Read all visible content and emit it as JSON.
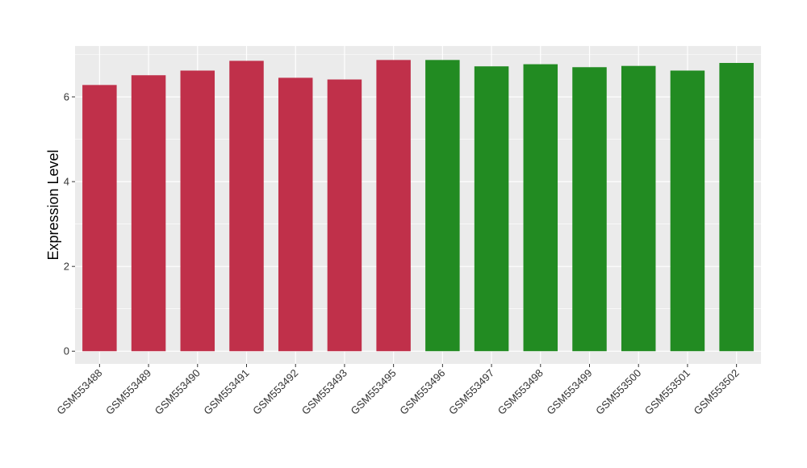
{
  "chart_data": {
    "type": "bar",
    "title": "",
    "xlabel": "",
    "ylabel": "Expression Level",
    "ylim": [
      -0.3,
      7.2
    ],
    "yticks": [
      0,
      2,
      4,
      6
    ],
    "grid": true,
    "legend": "none",
    "panel_color": "#EBEBEB",
    "categories": [
      "GSM553488",
      "GSM553489",
      "GSM553490",
      "GSM553491",
      "GSM553492",
      "GSM553493",
      "GSM553495",
      "GSM553496",
      "GSM553497",
      "GSM553498",
      "GSM553499",
      "GSM553500",
      "GSM553501",
      "GSM553502"
    ],
    "values": [
      6.28,
      6.51,
      6.62,
      6.85,
      6.45,
      6.41,
      6.87,
      6.87,
      6.72,
      6.77,
      6.7,
      6.73,
      6.62,
      6.8
    ],
    "colors": [
      "#C0304A",
      "#C0304A",
      "#C0304A",
      "#C0304A",
      "#C0304A",
      "#C0304A",
      "#C0304A",
      "#228B22",
      "#228B22",
      "#228B22",
      "#228B22",
      "#228B22",
      "#228B22",
      "#228B22"
    ]
  }
}
